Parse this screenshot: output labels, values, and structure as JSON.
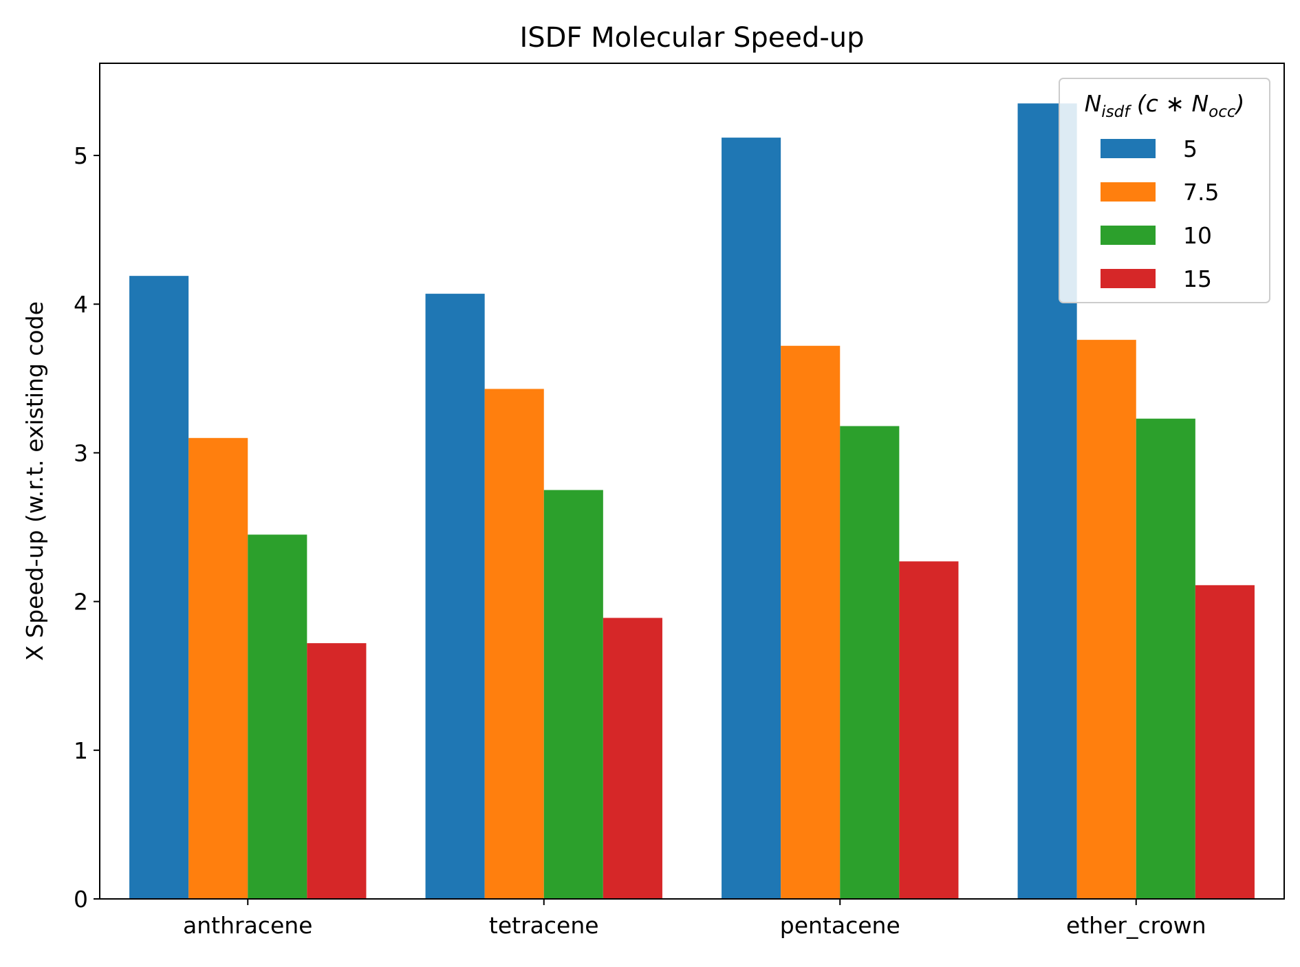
{
  "chart_data": {
    "type": "bar",
    "title": "ISDF Molecular Speed-up",
    "xlabel": "",
    "ylabel": "X Speed-up (w.r.t. existing code",
    "categories": [
      "anthracene",
      "tetracene",
      "pentacene",
      "ether_crown"
    ],
    "ylim": [
      0,
      5.62
    ],
    "yticks": [
      0,
      1,
      2,
      3,
      4,
      5
    ],
    "grid": false,
    "legend": {
      "placement": "top-right",
      "title_main": "N",
      "title_sub": "isdf",
      "title_mid": " (c ∗ N",
      "title_sub2": "occ",
      "title_end": ")"
    },
    "series": [
      {
        "name": "5",
        "color": "#1f77b4",
        "values": [
          4.19,
          4.07,
          5.12,
          5.35
        ]
      },
      {
        "name": "7.5",
        "color": "#ff7f0e",
        "values": [
          3.1,
          3.43,
          3.72,
          3.76
        ]
      },
      {
        "name": "10",
        "color": "#2ca02c",
        "values": [
          2.45,
          2.75,
          3.18,
          3.23
        ]
      },
      {
        "name": "15",
        "color": "#d62728",
        "values": [
          1.72,
          1.89,
          2.27,
          2.11
        ]
      }
    ]
  }
}
